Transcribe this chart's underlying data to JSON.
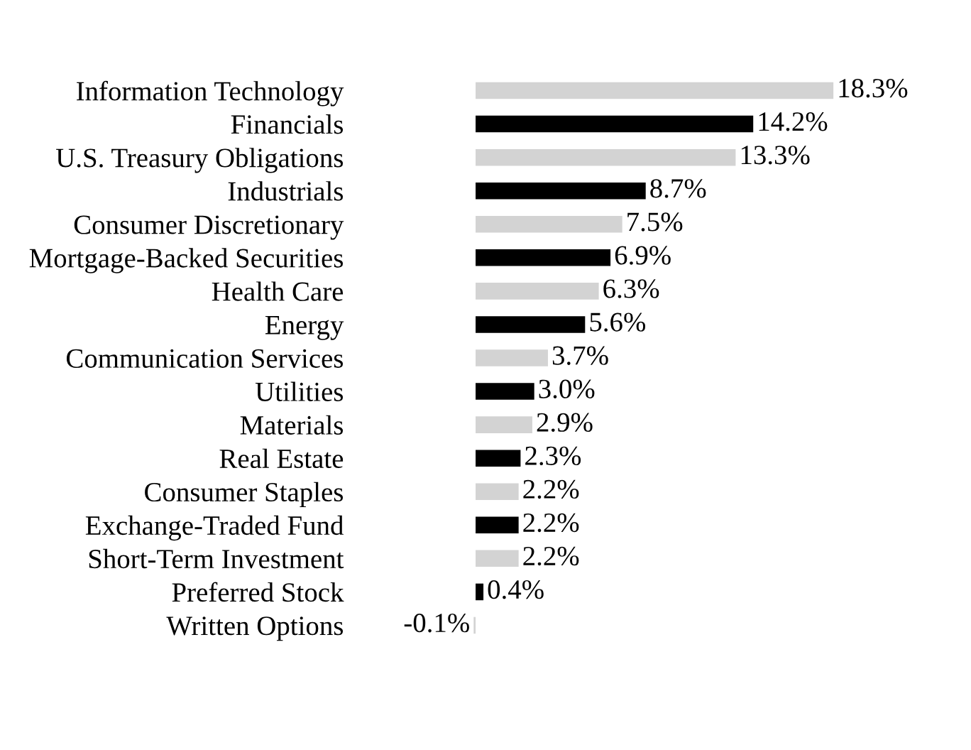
{
  "chart_data": {
    "type": "bar",
    "orientation": "horizontal",
    "data_labels": true,
    "grid": false,
    "legend": false,
    "categories": [
      "Information Technology",
      "Financials",
      "U.S. Treasury Obligations",
      "Industrials",
      "Consumer Discretionary",
      "Mortgage-Backed Securities",
      "Health Care",
      "Energy",
      "Communication Services",
      "Utilities",
      "Materials",
      "Real Estate",
      "Consumer Staples",
      "Exchange-Traded Fund",
      "Short-Term Investment",
      "Preferred Stock",
      "Written Options"
    ],
    "values": [
      18.3,
      14.2,
      13.3,
      8.7,
      7.5,
      6.9,
      6.3,
      5.6,
      3.7,
      3.0,
      2.9,
      2.3,
      2.2,
      2.2,
      2.2,
      0.4,
      -0.1
    ],
    "value_labels": [
      "18.3%",
      "14.2%",
      "13.3%",
      "8.7%",
      "7.5%",
      "6.9%",
      "6.3%",
      "5.6%",
      "3.7%",
      "3.0%",
      "2.9%",
      "2.3%",
      "2.2%",
      "2.2%",
      "2.2%",
      "0.4%",
      "-0.1%"
    ],
    "colors": [
      "#d3d3d3",
      "#000000",
      "#d3d3d3",
      "#000000",
      "#d3d3d3",
      "#000000",
      "#d3d3d3",
      "#000000",
      "#d3d3d3",
      "#000000",
      "#d3d3d3",
      "#000000",
      "#d3d3d3",
      "#000000",
      "#d3d3d3",
      "#000000",
      "#d3d3d3"
    ]
  }
}
